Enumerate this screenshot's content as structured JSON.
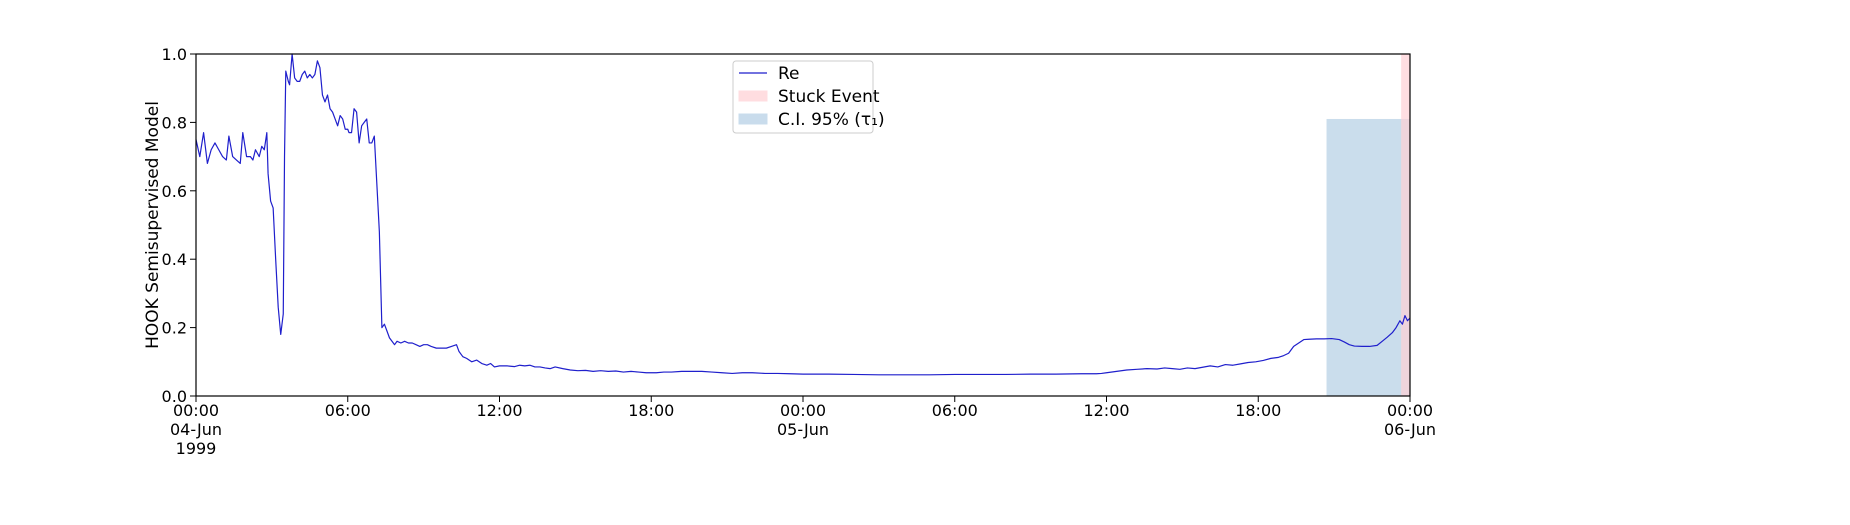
{
  "chart_data": {
    "type": "line",
    "ylabel": "HOOK Semisupervised Model",
    "ylim": [
      0,
      1
    ],
    "xlim_hours": [
      0,
      48
    ],
    "y_ticks": [
      "0.0",
      "0.2",
      "0.4",
      "0.6",
      "0.8",
      "1.0"
    ],
    "x_ticks": [
      {
        "hour": 0,
        "lines": [
          "00:00",
          "04-Jun",
          "1999"
        ]
      },
      {
        "hour": 6,
        "lines": [
          "06:00"
        ]
      },
      {
        "hour": 12,
        "lines": [
          "12:00"
        ]
      },
      {
        "hour": 18,
        "lines": [
          "18:00"
        ]
      },
      {
        "hour": 24,
        "lines": [
          "00:00",
          "05-Jun"
        ]
      },
      {
        "hour": 30,
        "lines": [
          "06:00"
        ]
      },
      {
        "hour": 36,
        "lines": [
          "12:00"
        ]
      },
      {
        "hour": 42,
        "lines": [
          "18:00"
        ]
      },
      {
        "hour": 48,
        "lines": [
          "00:00",
          "06-Jun"
        ]
      }
    ],
    "legend": {
      "placement": "upper-center",
      "entries": [
        {
          "label": "Re",
          "kind": "line",
          "color": "#1f1fcc"
        },
        {
          "label": "Stuck Event",
          "kind": "patch",
          "color": "#ffdde0"
        },
        {
          "label": "C.I. 95% (τ₁)",
          "kind": "patch",
          "color": "#c9dcec"
        }
      ]
    },
    "spans": [
      {
        "name": "C.I. 95% (τ₁)",
        "x_start": 44.7,
        "x_end": 48,
        "y_top": 0.81,
        "color": "#b8d1e6"
      },
      {
        "name": "Stuck Event",
        "x_start": 47.65,
        "x_end": 48,
        "y_top": 1.0,
        "color": "#ffd0d5"
      }
    ],
    "series": [
      {
        "name": "Re",
        "color": "#1f1fcc",
        "points": [
          [
            0,
            0.75
          ],
          [
            0.15,
            0.7
          ],
          [
            0.3,
            0.77
          ],
          [
            0.45,
            0.68
          ],
          [
            0.6,
            0.72
          ],
          [
            0.75,
            0.74
          ],
          [
            0.9,
            0.72
          ],
          [
            1.05,
            0.7
          ],
          [
            1.2,
            0.69
          ],
          [
            1.3,
            0.76
          ],
          [
            1.45,
            0.7
          ],
          [
            1.6,
            0.69
          ],
          [
            1.75,
            0.68
          ],
          [
            1.85,
            0.77
          ],
          [
            2.0,
            0.7
          ],
          [
            2.15,
            0.7
          ],
          [
            2.25,
            0.69
          ],
          [
            2.35,
            0.72
          ],
          [
            2.5,
            0.7
          ],
          [
            2.6,
            0.73
          ],
          [
            2.7,
            0.72
          ],
          [
            2.8,
            0.77
          ],
          [
            2.85,
            0.65
          ],
          [
            2.95,
            0.57
          ],
          [
            3.05,
            0.55
          ],
          [
            3.15,
            0.4
          ],
          [
            3.25,
            0.26
          ],
          [
            3.35,
            0.18
          ],
          [
            3.45,
            0.24
          ],
          [
            3.5,
            0.7
          ],
          [
            3.55,
            0.95
          ],
          [
            3.65,
            0.92
          ],
          [
            3.7,
            0.91
          ],
          [
            3.8,
            1.0
          ],
          [
            3.9,
            0.93
          ],
          [
            4.0,
            0.92
          ],
          [
            4.1,
            0.92
          ],
          [
            4.2,
            0.94
          ],
          [
            4.3,
            0.95
          ],
          [
            4.4,
            0.93
          ],
          [
            4.5,
            0.94
          ],
          [
            4.6,
            0.93
          ],
          [
            4.7,
            0.94
          ],
          [
            4.8,
            0.98
          ],
          [
            4.9,
            0.96
          ],
          [
            5.0,
            0.88
          ],
          [
            5.1,
            0.86
          ],
          [
            5.2,
            0.88
          ],
          [
            5.3,
            0.84
          ],
          [
            5.4,
            0.83
          ],
          [
            5.5,
            0.81
          ],
          [
            5.6,
            0.79
          ],
          [
            5.7,
            0.82
          ],
          [
            5.8,
            0.81
          ],
          [
            5.9,
            0.78
          ],
          [
            6.0,
            0.78
          ],
          [
            6.05,
            0.77
          ],
          [
            6.15,
            0.77
          ],
          [
            6.25,
            0.84
          ],
          [
            6.35,
            0.83
          ],
          [
            6.45,
            0.74
          ],
          [
            6.55,
            0.79
          ],
          [
            6.65,
            0.8
          ],
          [
            6.75,
            0.81
          ],
          [
            6.85,
            0.74
          ],
          [
            6.95,
            0.74
          ],
          [
            7.05,
            0.76
          ],
          [
            7.15,
            0.62
          ],
          [
            7.25,
            0.48
          ],
          [
            7.35,
            0.2
          ],
          [
            7.45,
            0.21
          ],
          [
            7.55,
            0.19
          ],
          [
            7.65,
            0.17
          ],
          [
            7.75,
            0.16
          ],
          [
            7.85,
            0.15
          ],
          [
            7.95,
            0.16
          ],
          [
            8.1,
            0.155
          ],
          [
            8.25,
            0.16
          ],
          [
            8.4,
            0.155
          ],
          [
            8.55,
            0.155
          ],
          [
            8.7,
            0.15
          ],
          [
            8.85,
            0.145
          ],
          [
            9.0,
            0.15
          ],
          [
            9.15,
            0.15
          ],
          [
            9.3,
            0.145
          ],
          [
            9.5,
            0.14
          ],
          [
            9.7,
            0.14
          ],
          [
            9.9,
            0.14
          ],
          [
            10.1,
            0.145
          ],
          [
            10.3,
            0.15
          ],
          [
            10.4,
            0.13
          ],
          [
            10.55,
            0.115
          ],
          [
            10.7,
            0.11
          ],
          [
            10.9,
            0.1
          ],
          [
            11.1,
            0.105
          ],
          [
            11.3,
            0.095
          ],
          [
            11.5,
            0.09
          ],
          [
            11.65,
            0.095
          ],
          [
            11.8,
            0.085
          ],
          [
            12.0,
            0.088
          ],
          [
            12.3,
            0.088
          ],
          [
            12.6,
            0.086
          ],
          [
            12.8,
            0.09
          ],
          [
            13.0,
            0.088
          ],
          [
            13.2,
            0.09
          ],
          [
            13.4,
            0.085
          ],
          [
            13.6,
            0.085
          ],
          [
            13.8,
            0.082
          ],
          [
            14.0,
            0.08
          ],
          [
            14.2,
            0.085
          ],
          [
            14.5,
            0.08
          ],
          [
            14.8,
            0.076
          ],
          [
            15.1,
            0.074
          ],
          [
            15.4,
            0.075
          ],
          [
            15.7,
            0.072
          ],
          [
            16.0,
            0.074
          ],
          [
            16.3,
            0.072
          ],
          [
            16.6,
            0.073
          ],
          [
            16.9,
            0.07
          ],
          [
            17.2,
            0.072
          ],
          [
            17.5,
            0.07
          ],
          [
            17.8,
            0.068
          ],
          [
            18.2,
            0.068
          ],
          [
            18.5,
            0.07
          ],
          [
            18.8,
            0.07
          ],
          [
            19.2,
            0.072
          ],
          [
            19.6,
            0.072
          ],
          [
            20.0,
            0.072
          ],
          [
            20.4,
            0.07
          ],
          [
            20.8,
            0.068
          ],
          [
            21.2,
            0.066
          ],
          [
            21.6,
            0.068
          ],
          [
            22.0,
            0.068
          ],
          [
            22.5,
            0.066
          ],
          [
            23.0,
            0.066
          ],
          [
            23.5,
            0.065
          ],
          [
            24.0,
            0.064
          ],
          [
            25.0,
            0.064
          ],
          [
            26.0,
            0.063
          ],
          [
            27.0,
            0.062
          ],
          [
            28.0,
            0.062
          ],
          [
            29.0,
            0.062
          ],
          [
            30.0,
            0.063
          ],
          [
            31.0,
            0.063
          ],
          [
            32.0,
            0.063
          ],
          [
            33.0,
            0.064
          ],
          [
            34.0,
            0.064
          ],
          [
            35.0,
            0.065
          ],
          [
            35.6,
            0.065
          ],
          [
            35.8,
            0.066
          ],
          [
            36.0,
            0.068
          ],
          [
            36.4,
            0.072
          ],
          [
            36.8,
            0.076
          ],
          [
            37.2,
            0.078
          ],
          [
            37.6,
            0.08
          ],
          [
            38.0,
            0.079
          ],
          [
            38.3,
            0.082
          ],
          [
            38.6,
            0.08
          ],
          [
            38.9,
            0.078
          ],
          [
            39.2,
            0.082
          ],
          [
            39.5,
            0.08
          ],
          [
            39.8,
            0.084
          ],
          [
            40.1,
            0.088
          ],
          [
            40.4,
            0.085
          ],
          [
            40.7,
            0.092
          ],
          [
            41.0,
            0.09
          ],
          [
            41.3,
            0.094
          ],
          [
            41.6,
            0.098
          ],
          [
            41.9,
            0.1
          ],
          [
            42.2,
            0.104
          ],
          [
            42.5,
            0.11
          ],
          [
            42.8,
            0.113
          ],
          [
            43.0,
            0.118
          ],
          [
            43.2,
            0.125
          ],
          [
            43.4,
            0.145
          ],
          [
            43.6,
            0.155
          ],
          [
            43.8,
            0.165
          ],
          [
            44.0,
            0.166
          ],
          [
            44.3,
            0.167
          ],
          [
            44.6,
            0.167
          ],
          [
            44.9,
            0.168
          ],
          [
            45.2,
            0.165
          ],
          [
            45.4,
            0.158
          ],
          [
            45.6,
            0.15
          ],
          [
            45.8,
            0.146
          ],
          [
            46.1,
            0.145
          ],
          [
            46.4,
            0.145
          ],
          [
            46.7,
            0.148
          ],
          [
            46.9,
            0.16
          ],
          [
            47.1,
            0.172
          ],
          [
            47.3,
            0.185
          ],
          [
            47.45,
            0.2
          ],
          [
            47.6,
            0.22
          ],
          [
            47.7,
            0.21
          ],
          [
            47.8,
            0.235
          ],
          [
            47.9,
            0.22
          ],
          [
            48.0,
            0.228
          ]
        ]
      }
    ]
  }
}
